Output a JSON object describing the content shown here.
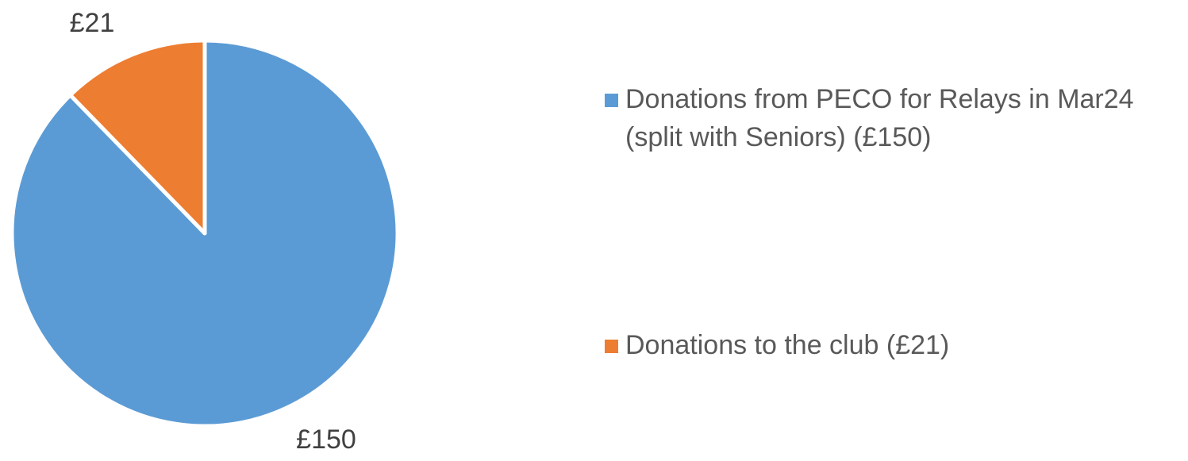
{
  "chart_data": {
    "type": "pie",
    "title": "",
    "slices": [
      {
        "label": "Donations from PECO for Relays in Mar24 (split with Seniors) (£150)",
        "value": 150,
        "data_label": "£150",
        "color": "#5B9BD5"
      },
      {
        "label": "Donations to the club (£21)",
        "value": 21,
        "data_label": "£21",
        "color": "#ED7D31"
      }
    ],
    "start_angle_deg": 0,
    "direction": "clockwise",
    "legend_position": "right"
  }
}
